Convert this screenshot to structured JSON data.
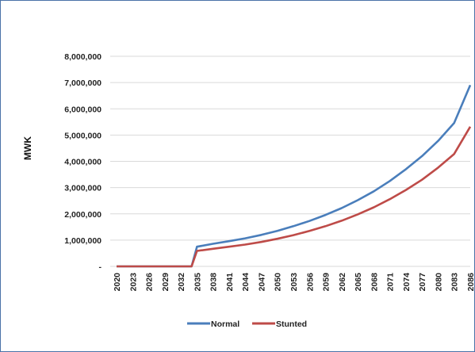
{
  "chart_data": {
    "type": "line",
    "title": "",
    "xlabel": "",
    "ylabel": "MWK",
    "ylim": [
      0,
      8000000
    ],
    "y_ticks": [
      0,
      1000000,
      2000000,
      3000000,
      4000000,
      5000000,
      6000000,
      7000000,
      8000000
    ],
    "y_tick_labels": [
      "-",
      "1,000,000",
      "2,000,000",
      "3,000,000",
      "4,000,000",
      "5,000,000",
      "6,000,000",
      "7,000,000",
      "8,000,000"
    ],
    "x_tick_labels": [
      "2020",
      "2023",
      "2026",
      "2029",
      "2032",
      "2035",
      "2038",
      "2041",
      "2044",
      "2047",
      "2050",
      "2053",
      "2056",
      "2059",
      "2062",
      "2065",
      "2068",
      "2071",
      "2074",
      "2077",
      "2080",
      "2083",
      "2086"
    ],
    "grid": "horizontal",
    "legend_position": "bottom",
    "x": [
      2020,
      2023,
      2026,
      2029,
      2032,
      2034,
      2035,
      2038,
      2041,
      2044,
      2047,
      2050,
      2053,
      2056,
      2059,
      2062,
      2065,
      2068,
      2071,
      2074,
      2077,
      2080,
      2083,
      2086
    ],
    "series": [
      {
        "name": "Normal",
        "color": "#4a7ebb",
        "values": [
          0,
          0,
          0,
          0,
          0,
          0,
          750000,
          860000,
          960000,
          1070000,
          1200000,
          1350000,
          1530000,
          1730000,
          1960000,
          2220000,
          2520000,
          2860000,
          3250000,
          3700000,
          4200000,
          4780000,
          5460000,
          6900000
        ]
      },
      {
        "name": "Stunted",
        "color": "#be4b48",
        "values": [
          0,
          0,
          0,
          0,
          0,
          0,
          590000,
          670000,
          750000,
          830000,
          930000,
          1050000,
          1190000,
          1350000,
          1530000,
          1740000,
          1980000,
          2250000,
          2560000,
          2910000,
          3300000,
          3760000,
          4280000,
          5320000
        ]
      }
    ]
  }
}
